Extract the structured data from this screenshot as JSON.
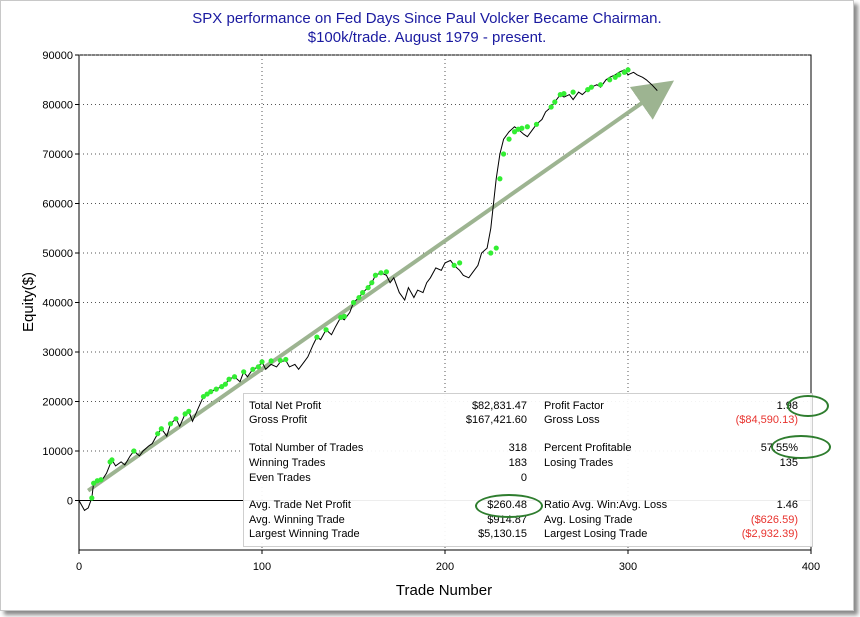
{
  "chart_data": {
    "type": "line",
    "title": [
      "SPX performance on Fed Days Since Paul Volcker Became Chairman.",
      "$100k/trade. August 1979 - present."
    ],
    "xlabel": "Trade Number",
    "ylabel": "Equity($)",
    "xlim": [
      0,
      400
    ],
    "ylim": [
      -10000,
      90000
    ],
    "xticks": [
      0,
      100,
      200,
      300,
      400
    ],
    "yticks": [
      0,
      10000,
      20000,
      30000,
      40000,
      50000,
      60000,
      70000,
      80000,
      90000
    ],
    "grid": true,
    "colors": {
      "equity_line": "#000000",
      "new_high_marker": "#33ee33",
      "trend_arrow": "#9db491",
      "title": "#1a1aa0",
      "negative": "#e8332e",
      "highlight": "#2e7d2e"
    },
    "series": [
      {
        "x": [
          0,
          3,
          5,
          7,
          8,
          10,
          12,
          15,
          18,
          20,
          23,
          25,
          28,
          30,
          33,
          35,
          38,
          40,
          43,
          45,
          48,
          50,
          53,
          55,
          58,
          60,
          62,
          65,
          68,
          70,
          72,
          75,
          78,
          80,
          82,
          85,
          88,
          90,
          92,
          95,
          98,
          100,
          102,
          105,
          108,
          110,
          113,
          115,
          118,
          120,
          123,
          125,
          128,
          130,
          132,
          135,
          138,
          140,
          143,
          145,
          148,
          150,
          153,
          155,
          158,
          160,
          162,
          165,
          168,
          170,
          172,
          175,
          178,
          180,
          183,
          185,
          188,
          190,
          192,
          195,
          198,
          200,
          203,
          205,
          208,
          210,
          213,
          215,
          218,
          220,
          223,
          225,
          228,
          230,
          232,
          235,
          238,
          240,
          243,
          245,
          248,
          250,
          253,
          255,
          258,
          260,
          263,
          265,
          268,
          270,
          273,
          275,
          278,
          280,
          283,
          285,
          288,
          290,
          293,
          295,
          298,
          300,
          303,
          305,
          308,
          310,
          313,
          316
        ],
        "values": [
          0,
          -2000,
          -1500,
          500,
          3500,
          4000,
          3800,
          5500,
          8200,
          7000,
          7800,
          7200,
          9000,
          10000,
          9000,
          10000,
          11000,
          11500,
          13500,
          14500,
          13000,
          15500,
          16500,
          15000,
          17500,
          18000,
          16000,
          18500,
          21000,
          21500,
          22000,
          22500,
          23000,
          23500,
          24500,
          25000,
          24000,
          26000,
          25000,
          26500,
          27000,
          28000,
          26500,
          27500,
          27000,
          28000,
          28300,
          27000,
          27500,
          26500,
          28000,
          29000,
          31500,
          33000,
          32500,
          34500,
          33500,
          35000,
          37000,
          36500,
          38000,
          40000,
          41000,
          42000,
          43000,
          44000,
          45500,
          46000,
          45500,
          44000,
          45000,
          42000,
          40500,
          43000,
          41000,
          42500,
          42000,
          44000,
          45000,
          47000,
          46500,
          48000,
          48500,
          47500,
          46500,
          45500,
          45000,
          46000,
          47500,
          50000,
          51000,
          55000,
          65000,
          70000,
          73000,
          74500,
          75500,
          75000,
          74000,
          73500,
          75000,
          76000,
          77000,
          78500,
          79500,
          80500,
          82000,
          81500,
          82000,
          81000,
          82500,
          82000,
          83000,
          83500,
          84000,
          83500,
          85000,
          85500,
          86000,
          86500,
          87000,
          86000,
          86500,
          86000,
          85500,
          85000,
          84000,
          82800
        ]
      }
    ],
    "new_high_points": {
      "x": [
        7,
        8,
        10,
        12,
        17,
        18,
        30,
        43,
        45,
        50,
        53,
        58,
        60,
        68,
        70,
        72,
        75,
        78,
        80,
        82,
        85,
        90,
        95,
        98,
        100,
        105,
        110,
        113,
        130,
        135,
        143,
        145,
        150,
        153,
        155,
        158,
        160,
        162,
        165,
        168,
        205,
        208,
        225,
        228,
        230,
        232,
        235,
        238,
        240,
        242,
        245,
        250,
        258,
        260,
        263,
        265,
        270,
        278,
        280,
        285,
        290,
        293,
        295,
        298,
        300
      ],
      "values": [
        500,
        3500,
        4000,
        4200,
        7800,
        8200,
        10000,
        13500,
        14500,
        15500,
        16500,
        17500,
        18000,
        21000,
        21500,
        22000,
        22500,
        23000,
        23500,
        24500,
        25000,
        26000,
        26500,
        27000,
        28000,
        28200,
        28300,
        28500,
        33000,
        34500,
        37000,
        37200,
        40000,
        41000,
        42000,
        43000,
        44000,
        45500,
        46000,
        46200,
        47500,
        48000,
        50000,
        51000,
        65000,
        70000,
        73000,
        74500,
        75000,
        75200,
        75500,
        76000,
        79500,
        80500,
        82000,
        82200,
        82500,
        83000,
        83500,
        84000,
        85000,
        85500,
        86000,
        86500,
        87000
      ]
    },
    "trend_arrow": {
      "from": [
        5,
        2000
      ],
      "to": [
        318,
        83000
      ]
    }
  },
  "stats_panel": {
    "left": [
      {
        "label": "Total Net Profit",
        "value": "$82,831.47"
      },
      {
        "label": "Gross Profit",
        "value": "$167,421.60"
      },
      {
        "label": "Total Number of Trades",
        "value": "318"
      },
      {
        "label": "Winning Trades",
        "value": "183"
      },
      {
        "label": "Even Trades",
        "value": "0"
      },
      {
        "label": "Avg. Trade Net Profit",
        "value": "$260.48"
      },
      {
        "label": "Avg. Winning Trade",
        "value": "$914.87"
      },
      {
        "label": "Largest Winning Trade",
        "value": "$5,130.15"
      }
    ],
    "right": [
      {
        "label": "Profit Factor",
        "value": "1.98"
      },
      {
        "label": "Gross Loss",
        "value": "($84,590.13)"
      },
      {
        "label": "Percent Profitable",
        "value": "57.55%"
      },
      {
        "label": "Losing Trades",
        "value": "135"
      },
      {
        "label": "",
        "value": ""
      },
      {
        "label": "Ratio Avg. Win:Avg. Loss",
        "value": "1.46"
      },
      {
        "label": "Avg. Losing Trade",
        "value": "($626.59)"
      },
      {
        "label": "Largest Losing Trade",
        "value": "($2,932.39)"
      }
    ]
  }
}
